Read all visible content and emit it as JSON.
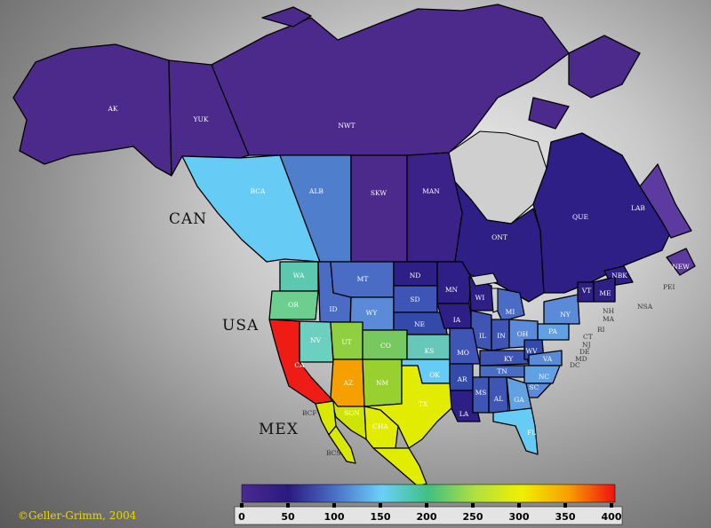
{
  "map": {
    "credit": "©Geller-Grimm, 2004",
    "countries": [
      "CAN",
      "USA",
      "MEX"
    ],
    "legend": {
      "ticks": [
        "0",
        "50",
        "100",
        "150",
        "200",
        "250",
        "300",
        "350",
        "400"
      ],
      "min": 0,
      "max": 400,
      "gradient": [
        "#4a2a90",
        "#2a1a80",
        "#4a70c8",
        "#6ad0f8",
        "#40c080",
        "#b0e040",
        "#f0f000",
        "#f8a000",
        "#f01010"
      ]
    },
    "regions": [
      {
        "code": "AK",
        "value": 55,
        "color": "#4b2a8c"
      },
      {
        "code": "YUK",
        "value": 55,
        "color": "#4b2a8c"
      },
      {
        "code": "NWT",
        "value": 55,
        "color": "#4b2a8c"
      },
      {
        "code": "BCA",
        "value": 130,
        "color": "#66ccf5"
      },
      {
        "code": "ALB",
        "value": 110,
        "color": "#4f7fcc"
      },
      {
        "code": "SKW",
        "value": 55,
        "color": "#4b2a8c"
      },
      {
        "code": "MAN",
        "value": 45,
        "color": "#3a2288"
      },
      {
        "code": "ONT",
        "value": 40,
        "color": "#2d1f86"
      },
      {
        "code": "QUE",
        "value": 40,
        "color": "#2d1f86"
      },
      {
        "code": "LAB",
        "value": 60,
        "color": "#5c3aa0"
      },
      {
        "code": "NEW",
        "value": 60,
        "color": "#5c3aa0"
      },
      {
        "code": "NBK",
        "value": 40,
        "color": "#2d1f86"
      },
      {
        "code": "WA",
        "value": 160,
        "color": "#5cc8b0"
      },
      {
        "code": "OR",
        "value": 170,
        "color": "#6ccf90"
      },
      {
        "code": "ID",
        "value": 100,
        "color": "#4a6cc4"
      },
      {
        "code": "MT",
        "value": 100,
        "color": "#4a6cc4"
      },
      {
        "code": "WY",
        "value": 110,
        "color": "#5a8ad8"
      },
      {
        "code": "ND",
        "value": 40,
        "color": "#2d1f86"
      },
      {
        "code": "SD",
        "value": 80,
        "color": "#3e55b5"
      },
      {
        "code": "NE",
        "value": 70,
        "color": "#344aab"
      },
      {
        "code": "MN",
        "value": 40,
        "color": "#2d1f86"
      },
      {
        "code": "IA",
        "value": 40,
        "color": "#2d1f86"
      },
      {
        "code": "WI",
        "value": 40,
        "color": "#2d1f86"
      },
      {
        "code": "MI",
        "value": 100,
        "color": "#4a6cc4"
      },
      {
        "code": "IL",
        "value": 80,
        "color": "#3e55b5"
      },
      {
        "code": "IN",
        "value": 80,
        "color": "#3e55b5"
      },
      {
        "code": "OH",
        "value": 110,
        "color": "#5a8ad8"
      },
      {
        "code": "NY",
        "value": 110,
        "color": "#5a8ad8"
      },
      {
        "code": "PA",
        "value": 120,
        "color": "#62a0e4"
      },
      {
        "code": "VT",
        "value": 40,
        "color": "#2d1f86"
      },
      {
        "code": "ME",
        "value": 40,
        "color": "#2d1f86"
      },
      {
        "code": "NV",
        "value": 160,
        "color": "#6cd0c0"
      },
      {
        "code": "UT",
        "value": 200,
        "color": "#8ed040"
      },
      {
        "code": "CO",
        "value": 190,
        "color": "#78c860"
      },
      {
        "code": "KS",
        "value": 160,
        "color": "#66c8b8"
      },
      {
        "code": "MO",
        "value": 80,
        "color": "#3e55b5"
      },
      {
        "code": "KY",
        "value": 80,
        "color": "#3e55b5"
      },
      {
        "code": "WV",
        "value": 70,
        "color": "#344aab"
      },
      {
        "code": "VA",
        "value": 110,
        "color": "#5a8ad8"
      },
      {
        "code": "CA",
        "value": 400,
        "color": "#ee1c14"
      },
      {
        "code": "AZ",
        "value": 310,
        "color": "#f6a000"
      },
      {
        "code": "NM",
        "value": 210,
        "color": "#98d030"
      },
      {
        "code": "OK",
        "value": 130,
        "color": "#66ccf5"
      },
      {
        "code": "AR",
        "value": 70,
        "color": "#344aab"
      },
      {
        "code": "TN",
        "value": 100,
        "color": "#4a6cc4"
      },
      {
        "code": "NC",
        "value": 120,
        "color": "#62a0e4"
      },
      {
        "code": "SC",
        "value": 110,
        "color": "#5a8ad8"
      },
      {
        "code": "TX",
        "value": 240,
        "color": "#e2ec00"
      },
      {
        "code": "LA",
        "value": 40,
        "color": "#2d1f86"
      },
      {
        "code": "MS",
        "value": 80,
        "color": "#3e55b5"
      },
      {
        "code": "AL",
        "value": 80,
        "color": "#3e55b5"
      },
      {
        "code": "GA",
        "value": 120,
        "color": "#62a0e4"
      },
      {
        "code": "FL",
        "value": 130,
        "color": "#66ccf5"
      },
      {
        "code": "SON",
        "value": 230,
        "color": "#cfe400"
      },
      {
        "code": "CHA",
        "value": 240,
        "color": "#e2ec00"
      },
      {
        "code": "MEX-S",
        "value": 240,
        "color": "#e2ec00"
      },
      {
        "code": "BCF",
        "value": 230,
        "color": "#d8e800"
      },
      {
        "code": "BCS",
        "value": 230,
        "color": "#d8e800"
      }
    ],
    "external_labels": [
      "BCF",
      "BCS",
      "PEI",
      "NSA",
      "NH",
      "MA",
      "RI",
      "CT",
      "NJ",
      "DE",
      "MD",
      "DC"
    ]
  }
}
